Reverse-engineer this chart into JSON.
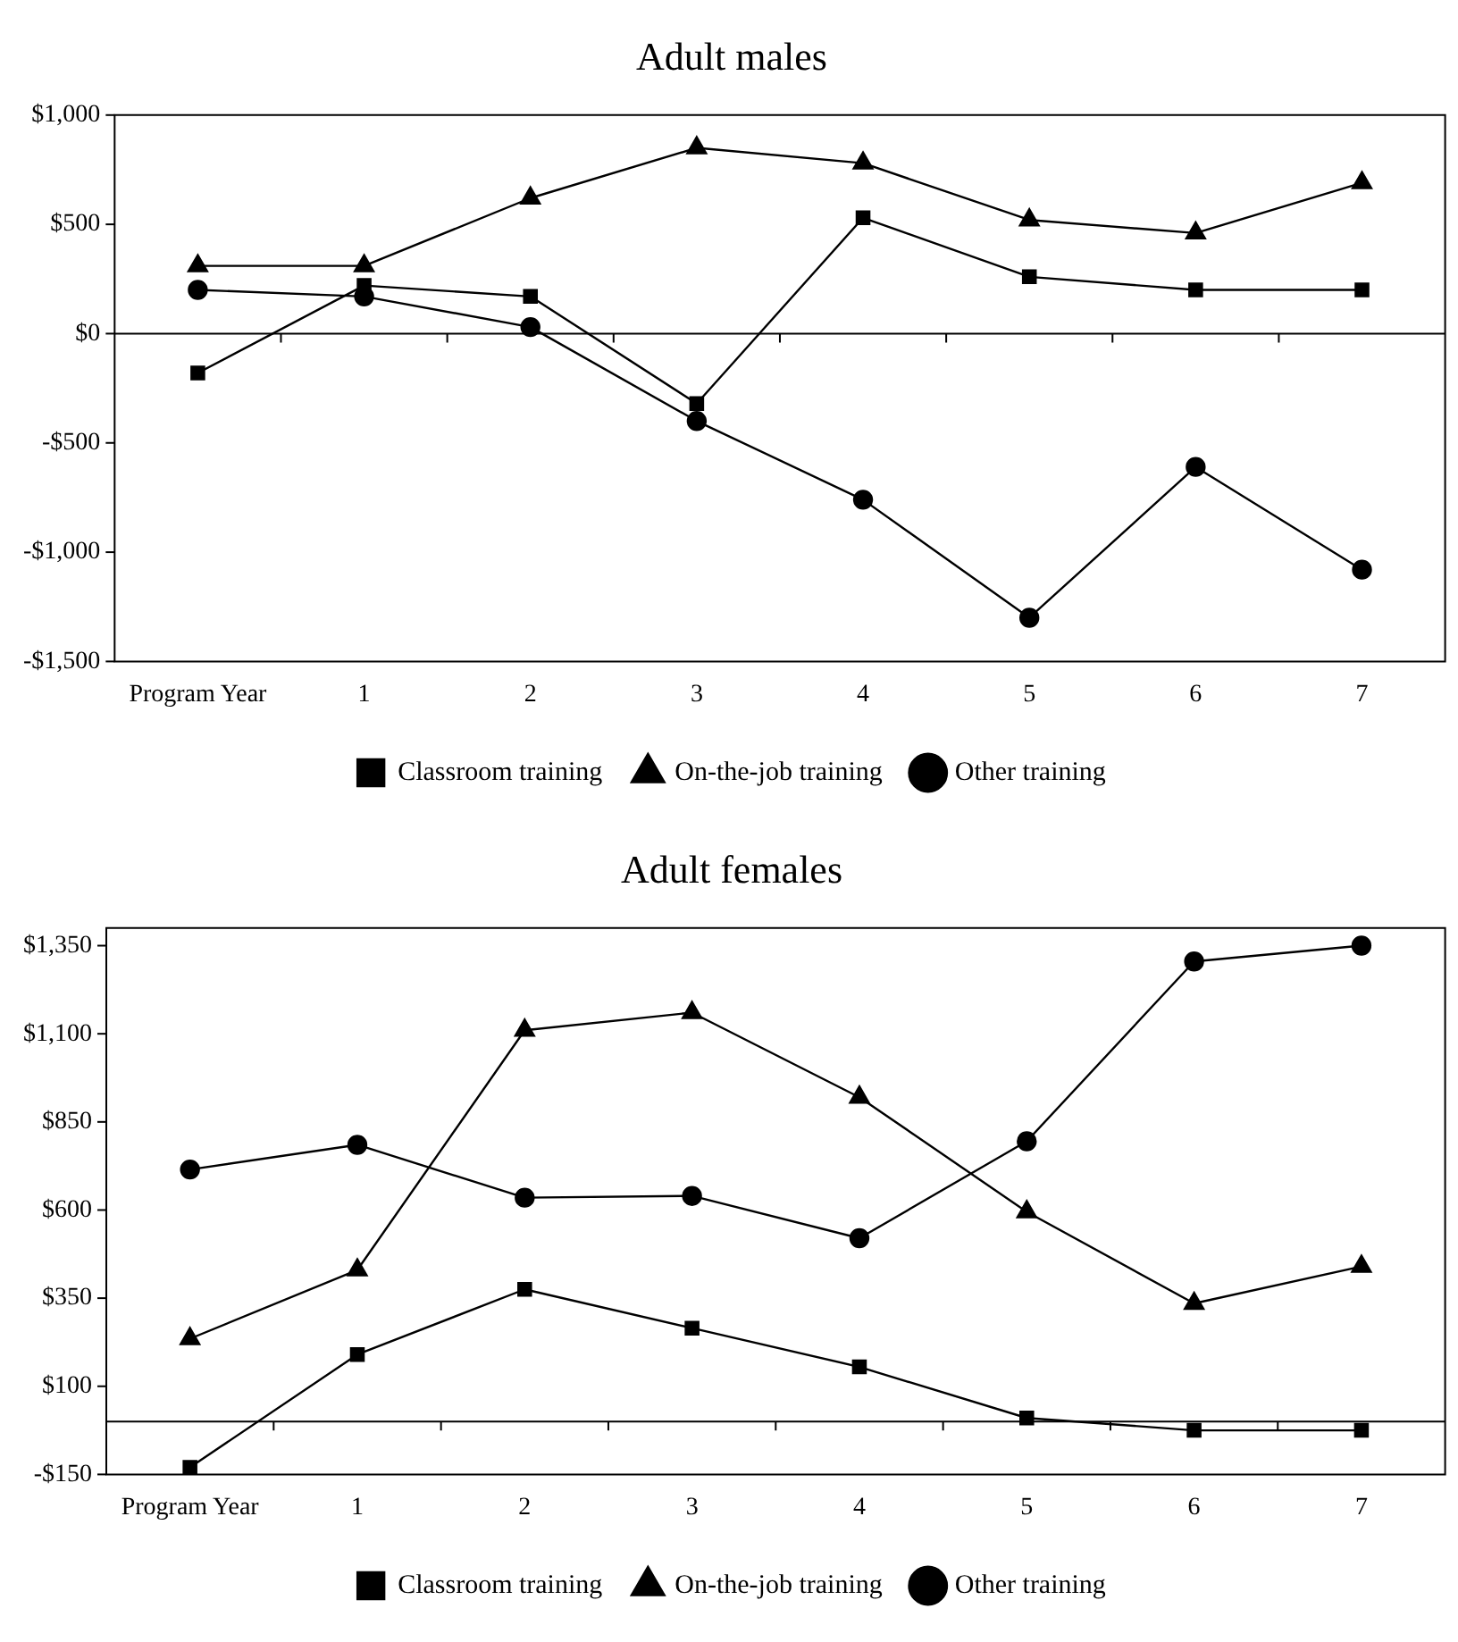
{
  "chart_data": [
    {
      "type": "line",
      "title": "Adult males",
      "categories": [
        "Program Year",
        "1",
        "2",
        "3",
        "4",
        "5",
        "6",
        "7"
      ],
      "series": [
        {
          "name": "Classroom training",
          "color": "#000000",
          "marker": "square",
          "values": [
            -180,
            220,
            170,
            -320,
            530,
            260,
            200,
            200
          ]
        },
        {
          "name": "On-the-job training",
          "color": "#000000",
          "marker": "triangle",
          "values": [
            310,
            310,
            620,
            850,
            780,
            520,
            460,
            690
          ]
        },
        {
          "name": "Other training",
          "color": "#000000",
          "marker": "circle",
          "values": [
            200,
            170,
            30,
            -400,
            -760,
            -1300,
            -610,
            -1080
          ]
        }
      ],
      "ylim": [
        -1500,
        1000
      ],
      "yticks": [
        {
          "value": -1500,
          "label": "-$1,500"
        },
        {
          "value": -1000,
          "label": "-$1,000"
        },
        {
          "value": -500,
          "label": "-$500"
        },
        {
          "value": 0,
          "label": "$0"
        },
        {
          "value": 500,
          "label": "$500"
        },
        {
          "value": 1000,
          "label": "$1,000"
        }
      ],
      "legend": "bottom"
    },
    {
      "type": "line",
      "title": "Adult females",
      "categories": [
        "Program Year",
        "1",
        "2",
        "3",
        "4",
        "5",
        "6",
        "7"
      ],
      "series": [
        {
          "name": "Classroom training",
          "color": "#000000",
          "marker": "square",
          "values": [
            -130,
            190,
            375,
            265,
            155,
            10,
            -25,
            -25
          ]
        },
        {
          "name": "On-the-job training",
          "color": "#000000",
          "marker": "triangle",
          "values": [
            235,
            430,
            1110,
            1160,
            920,
            595,
            335,
            440
          ]
        },
        {
          "name": "Other training",
          "color": "#000000",
          "marker": "circle",
          "values": [
            715,
            785,
            635,
            640,
            520,
            795,
            1305,
            1350
          ]
        }
      ],
      "ylim": [
        -150,
        1400
      ],
      "yticks": [
        {
          "value": -150,
          "label": "-$150"
        },
        {
          "value": 100,
          "label": "$100"
        },
        {
          "value": 350,
          "label": "$350"
        },
        {
          "value": 600,
          "label": "$600"
        },
        {
          "value": 850,
          "label": "$850"
        },
        {
          "value": 1100,
          "label": "$1,100"
        },
        {
          "value": 1350,
          "label": "$1,350"
        }
      ],
      "legend": "bottom"
    }
  ]
}
